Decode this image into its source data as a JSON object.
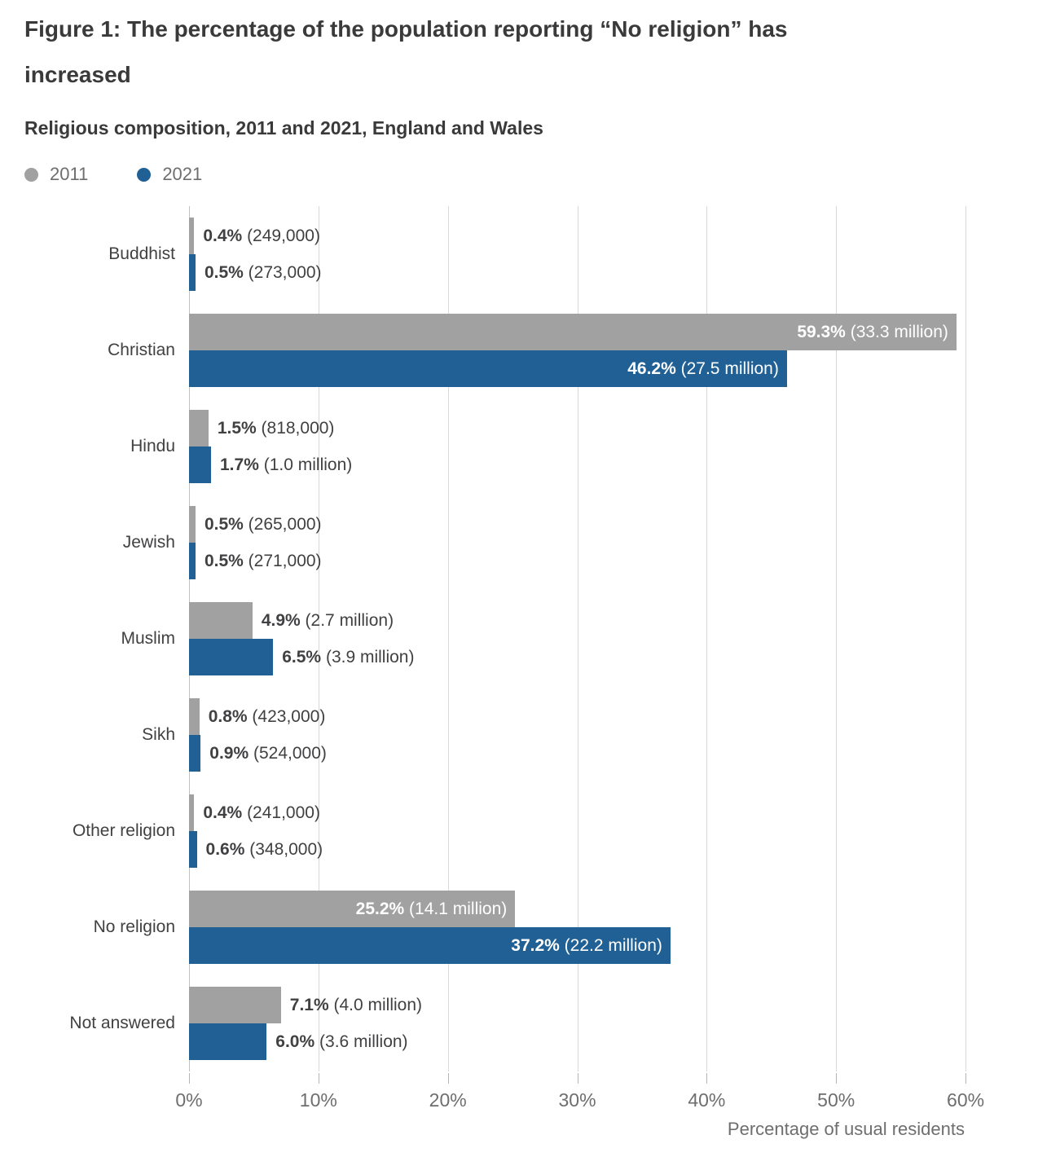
{
  "header": {
    "title": "Figure 1: The percentage of the population reporting “No religion” has increased",
    "subtitle": "Religious composition, 2011 and 2021, England and Wales"
  },
  "legend": {
    "item_2011": "2011",
    "item_2021": "2021"
  },
  "colors": {
    "series_2011": "#a1a1a1",
    "series_2021": "#206095",
    "text_dark": "#414042",
    "text_muted": "#6e6e6e"
  },
  "axis": {
    "ticks": [
      "0%",
      "10%",
      "20%",
      "30%",
      "40%",
      "50%",
      "60%"
    ],
    "tick_values": [
      0,
      10,
      20,
      30,
      40,
      50,
      60
    ],
    "max_display": 65.6,
    "title": "Percentage of usual residents"
  },
  "chart_data": {
    "type": "bar",
    "orientation": "horizontal",
    "title": "Religious composition, 2011 and 2021, England and Wales",
    "xlabel": "Percentage of usual residents",
    "xlim": [
      0,
      60
    ],
    "grid": true,
    "legend_position": "top-left",
    "categories": [
      "Buddhist",
      "Christian",
      "Hindu",
      "Jewish",
      "Muslim",
      "Sikh",
      "Other religion",
      "No religion",
      "Not answered"
    ],
    "series": [
      {
        "name": "2011",
        "values": [
          0.4,
          59.3,
          1.5,
          0.5,
          4.9,
          0.8,
          0.4,
          25.2,
          7.1
        ]
      },
      {
        "name": "2021",
        "values": [
          0.5,
          46.2,
          1.7,
          0.5,
          6.5,
          0.9,
          0.6,
          37.2,
          6.0
        ]
      }
    ],
    "rows": [
      {
        "category": "Buddhist",
        "y2011": {
          "pct": 0.4,
          "pct_label": "0.4%",
          "count_label": "(249,000)"
        },
        "y2021": {
          "pct": 0.5,
          "pct_label": "0.5%",
          "count_label": "(273,000)"
        }
      },
      {
        "category": "Christian",
        "y2011": {
          "pct": 59.3,
          "pct_label": "59.3%",
          "count_label": "(33.3 million)"
        },
        "y2021": {
          "pct": 46.2,
          "pct_label": "46.2%",
          "count_label": "(27.5 million)"
        }
      },
      {
        "category": "Hindu",
        "y2011": {
          "pct": 1.5,
          "pct_label": "1.5%",
          "count_label": "(818,000)"
        },
        "y2021": {
          "pct": 1.7,
          "pct_label": "1.7%",
          "count_label": "(1.0 million)"
        }
      },
      {
        "category": "Jewish",
        "y2011": {
          "pct": 0.5,
          "pct_label": "0.5%",
          "count_label": "(265,000)"
        },
        "y2021": {
          "pct": 0.5,
          "pct_label": "0.5%",
          "count_label": "(271,000)"
        }
      },
      {
        "category": "Muslim",
        "y2011": {
          "pct": 4.9,
          "pct_label": "4.9%",
          "count_label": "(2.7 million)"
        },
        "y2021": {
          "pct": 6.5,
          "pct_label": "6.5%",
          "count_label": "(3.9 million)"
        }
      },
      {
        "category": "Sikh",
        "y2011": {
          "pct": 0.8,
          "pct_label": "0.8%",
          "count_label": "(423,000)"
        },
        "y2021": {
          "pct": 0.9,
          "pct_label": "0.9%",
          "count_label": "(524,000)"
        }
      },
      {
        "category": "Other religion",
        "y2011": {
          "pct": 0.4,
          "pct_label": "0.4%",
          "count_label": "(241,000)"
        },
        "y2021": {
          "pct": 0.6,
          "pct_label": "0.6%",
          "count_label": "(348,000)"
        }
      },
      {
        "category": "No religion",
        "y2011": {
          "pct": 25.2,
          "pct_label": "25.2%",
          "count_label": "(14.1 million)"
        },
        "y2021": {
          "pct": 37.2,
          "pct_label": "37.2%",
          "count_label": "(22.2 million)"
        }
      },
      {
        "category": "Not answered",
        "y2011": {
          "pct": 7.1,
          "pct_label": "7.1%",
          "count_label": "(4.0 million)"
        },
        "y2021": {
          "pct": 6.0,
          "pct_label": "6.0%",
          "count_label": "(3.6 million)"
        }
      }
    ]
  }
}
